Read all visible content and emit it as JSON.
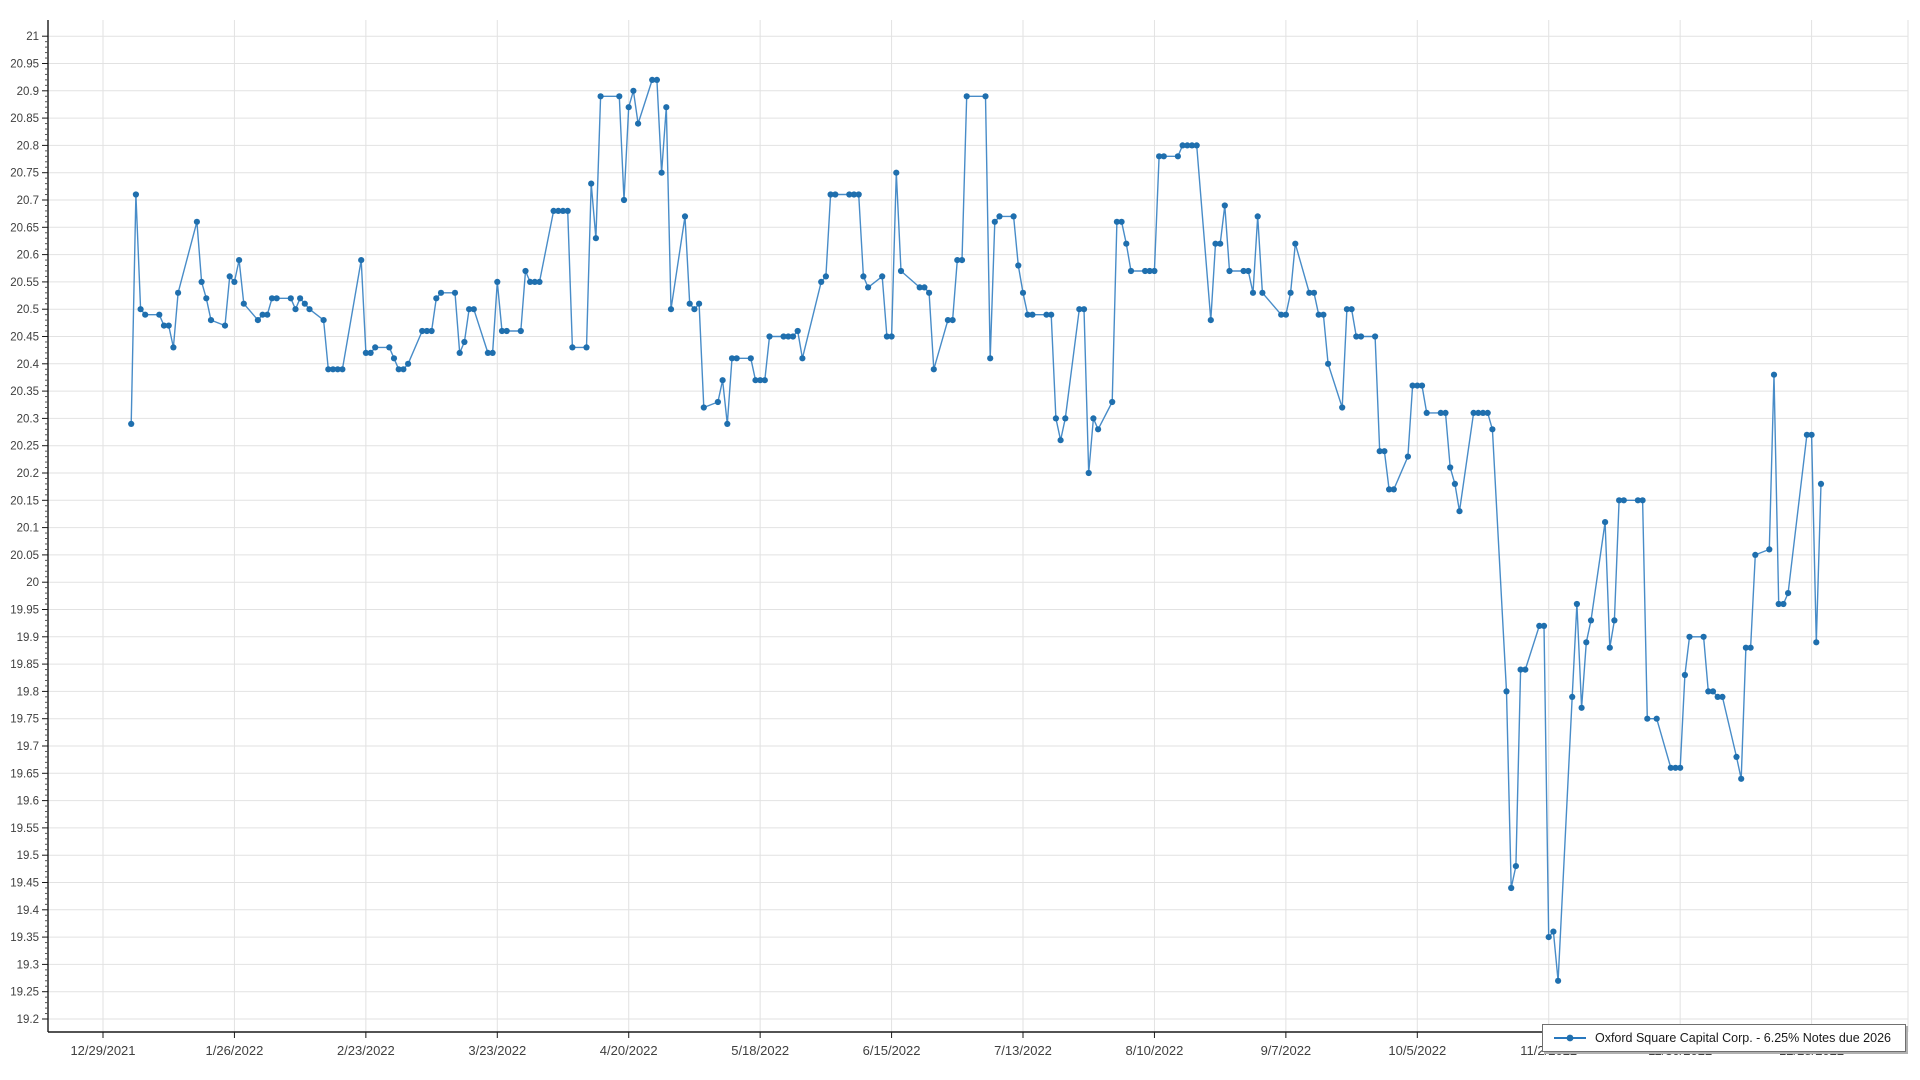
{
  "chart_data": {
    "type": "line",
    "title": "",
    "series_label": "Oxford Square Capital Corp. - 6.25% Notes due 2026",
    "legend_position": "bottom-right",
    "grid": true,
    "line_color": "#2878be",
    "marker_color": "#1f6fae",
    "grid_color": "#e2e2e2",
    "axis_color": "#1a1a1a",
    "label_color": "#404040",
    "y_axis": {
      "min": 19.2,
      "max": 21.0,
      "step": 0.05,
      "minor_step": 0.01
    },
    "x_axis": {
      "tick_labels": [
        "12/29/2021",
        "1/26/2022",
        "2/23/2022",
        "3/23/2022",
        "4/20/2022",
        "5/18/2022",
        "6/15/2022",
        "7/13/2022",
        "8/10/2022",
        "9/7/2022",
        "10/5/2022",
        "11/2/2022",
        "11/30/2022",
        "12/28/2022"
      ]
    },
    "ylim": [
      19.2,
      21.0
    ],
    "points": [
      [
        "1/4/2022",
        20.29
      ],
      [
        "1/5/2022",
        20.71
      ],
      [
        "1/6/2022",
        20.5
      ],
      [
        "1/7/2022",
        20.49
      ],
      [
        "1/10/2022",
        20.49
      ],
      [
        "1/11/2022",
        20.47
      ],
      [
        "1/12/2022",
        20.47
      ],
      [
        "1/13/2022",
        20.43
      ],
      [
        "1/14/2022",
        20.53
      ],
      [
        "1/18/2022",
        20.66
      ],
      [
        "1/19/2022",
        20.55
      ],
      [
        "1/20/2022",
        20.52
      ],
      [
        "1/21/2022",
        20.48
      ],
      [
        "1/24/2022",
        20.47
      ],
      [
        "1/25/2022",
        20.56
      ],
      [
        "1/26/2022",
        20.55
      ],
      [
        "1/27/2022",
        20.59
      ],
      [
        "1/28/2022",
        20.51
      ],
      [
        "1/31/2022",
        20.48
      ],
      [
        "2/1/2022",
        20.49
      ],
      [
        "2/2/2022",
        20.49
      ],
      [
        "2/3/2022",
        20.52
      ],
      [
        "2/4/2022",
        20.52
      ],
      [
        "2/7/2022",
        20.52
      ],
      [
        "2/8/2022",
        20.5
      ],
      [
        "2/9/2022",
        20.52
      ],
      [
        "2/10/2022",
        20.51
      ],
      [
        "2/11/2022",
        20.5
      ],
      [
        "2/14/2022",
        20.48
      ],
      [
        "2/15/2022",
        20.39
      ],
      [
        "2/16/2022",
        20.39
      ],
      [
        "2/17/2022",
        20.39
      ],
      [
        "2/18/2022",
        20.39
      ],
      [
        "2/22/2022",
        20.59
      ],
      [
        "2/23/2022",
        20.42
      ],
      [
        "2/24/2022",
        20.42
      ],
      [
        "2/25/2022",
        20.43
      ],
      [
        "2/28/2022",
        20.43
      ],
      [
        "3/1/2022",
        20.41
      ],
      [
        "3/2/2022",
        20.39
      ],
      [
        "3/3/2022",
        20.39
      ],
      [
        "3/4/2022",
        20.4
      ],
      [
        "3/7/2022",
        20.46
      ],
      [
        "3/8/2022",
        20.46
      ],
      [
        "3/9/2022",
        20.46
      ],
      [
        "3/10/2022",
        20.52
      ],
      [
        "3/11/2022",
        20.53
      ],
      [
        "3/14/2022",
        20.53
      ],
      [
        "3/15/2022",
        20.42
      ],
      [
        "3/16/2022",
        20.44
      ],
      [
        "3/17/2022",
        20.5
      ],
      [
        "3/18/2022",
        20.5
      ],
      [
        "3/21/2022",
        20.42
      ],
      [
        "3/22/2022",
        20.42
      ],
      [
        "3/23/2022",
        20.55
      ],
      [
        "3/24/2022",
        20.46
      ],
      [
        "3/25/2022",
        20.46
      ],
      [
        "3/28/2022",
        20.46
      ],
      [
        "3/29/2022",
        20.57
      ],
      [
        "3/30/2022",
        20.55
      ],
      [
        "3/31/2022",
        20.55
      ],
      [
        "4/1/2022",
        20.55
      ],
      [
        "4/4/2022",
        20.68
      ],
      [
        "4/5/2022",
        20.68
      ],
      [
        "4/6/2022",
        20.68
      ],
      [
        "4/7/2022",
        20.68
      ],
      [
        "4/8/2022",
        20.43
      ],
      [
        "4/11/2022",
        20.43
      ],
      [
        "4/12/2022",
        20.73
      ],
      [
        "4/13/2022",
        20.63
      ],
      [
        "4/14/2022",
        20.89
      ],
      [
        "4/18/2022",
        20.89
      ],
      [
        "4/19/2022",
        20.7
      ],
      [
        "4/20/2022",
        20.87
      ],
      [
        "4/21/2022",
        20.9
      ],
      [
        "4/22/2022",
        20.84
      ],
      [
        "4/25/2022",
        20.92
      ],
      [
        "4/26/2022",
        20.92
      ],
      [
        "4/27/2022",
        20.75
      ],
      [
        "4/28/2022",
        20.87
      ],
      [
        "4/29/2022",
        20.5
      ],
      [
        "5/2/2022",
        20.67
      ],
      [
        "5/3/2022",
        20.51
      ],
      [
        "5/4/2022",
        20.5
      ],
      [
        "5/5/2022",
        20.51
      ],
      [
        "5/6/2022",
        20.32
      ],
      [
        "5/9/2022",
        20.33
      ],
      [
        "5/10/2022",
        20.37
      ],
      [
        "5/11/2022",
        20.29
      ],
      [
        "5/12/2022",
        20.41
      ],
      [
        "5/13/2022",
        20.41
      ],
      [
        "5/16/2022",
        20.41
      ],
      [
        "5/17/2022",
        20.37
      ],
      [
        "5/18/2022",
        20.37
      ],
      [
        "5/19/2022",
        20.37
      ],
      [
        "5/20/2022",
        20.45
      ],
      [
        "5/23/2022",
        20.45
      ],
      [
        "5/24/2022",
        20.45
      ],
      [
        "5/25/2022",
        20.45
      ],
      [
        "5/26/2022",
        20.46
      ],
      [
        "5/27/2022",
        20.41
      ],
      [
        "5/31/2022",
        20.55
      ],
      [
        "6/1/2022",
        20.56
      ],
      [
        "6/2/2022",
        20.71
      ],
      [
        "6/3/2022",
        20.71
      ],
      [
        "6/6/2022",
        20.71
      ],
      [
        "6/7/2022",
        20.71
      ],
      [
        "6/8/2022",
        20.71
      ],
      [
        "6/9/2022",
        20.56
      ],
      [
        "6/10/2022",
        20.54
      ],
      [
        "6/13/2022",
        20.56
      ],
      [
        "6/14/2022",
        20.45
      ],
      [
        "6/15/2022",
        20.45
      ],
      [
        "6/16/2022",
        20.75
      ],
      [
        "6/17/2022",
        20.57
      ],
      [
        "6/21/2022",
        20.54
      ],
      [
        "6/22/2022",
        20.54
      ],
      [
        "6/23/2022",
        20.53
      ],
      [
        "6/24/2022",
        20.39
      ],
      [
        "6/27/2022",
        20.48
      ],
      [
        "6/28/2022",
        20.48
      ],
      [
        "6/29/2022",
        20.59
      ],
      [
        "6/30/2022",
        20.59
      ],
      [
        "7/1/2022",
        20.89
      ],
      [
        "7/5/2022",
        20.89
      ],
      [
        "7/6/2022",
        20.41
      ],
      [
        "7/7/2022",
        20.66
      ],
      [
        "7/8/2022",
        20.67
      ],
      [
        "7/11/2022",
        20.67
      ],
      [
        "7/12/2022",
        20.58
      ],
      [
        "7/13/2022",
        20.53
      ],
      [
        "7/14/2022",
        20.49
      ],
      [
        "7/15/2022",
        20.49
      ],
      [
        "7/18/2022",
        20.49
      ],
      [
        "7/19/2022",
        20.49
      ],
      [
        "7/20/2022",
        20.3
      ],
      [
        "7/21/2022",
        20.26
      ],
      [
        "7/22/2022",
        20.3
      ],
      [
        "7/25/2022",
        20.5
      ],
      [
        "7/26/2022",
        20.5
      ],
      [
        "7/27/2022",
        20.2
      ],
      [
        "7/28/2022",
        20.3
      ],
      [
        "7/29/2022",
        20.28
      ],
      [
        "8/1/2022",
        20.33
      ],
      [
        "8/2/2022",
        20.66
      ],
      [
        "8/3/2022",
        20.66
      ],
      [
        "8/4/2022",
        20.62
      ],
      [
        "8/5/2022",
        20.57
      ],
      [
        "8/8/2022",
        20.57
      ],
      [
        "8/9/2022",
        20.57
      ],
      [
        "8/10/2022",
        20.57
      ],
      [
        "8/11/2022",
        20.78
      ],
      [
        "8/12/2022",
        20.78
      ],
      [
        "8/15/2022",
        20.78
      ],
      [
        "8/16/2022",
        20.8
      ],
      [
        "8/17/2022",
        20.8
      ],
      [
        "8/18/2022",
        20.8
      ],
      [
        "8/19/2022",
        20.8
      ],
      [
        "8/22/2022",
        20.48
      ],
      [
        "8/23/2022",
        20.62
      ],
      [
        "8/24/2022",
        20.62
      ],
      [
        "8/25/2022",
        20.69
      ],
      [
        "8/26/2022",
        20.57
      ],
      [
        "8/29/2022",
        20.57
      ],
      [
        "8/30/2022",
        20.57
      ],
      [
        "8/31/2022",
        20.53
      ],
      [
        "9/1/2022",
        20.67
      ],
      [
        "9/2/2022",
        20.53
      ],
      [
        "9/6/2022",
        20.49
      ],
      [
        "9/7/2022",
        20.49
      ],
      [
        "9/8/2022",
        20.53
      ],
      [
        "9/9/2022",
        20.62
      ],
      [
        "9/12/2022",
        20.53
      ],
      [
        "9/13/2022",
        20.53
      ],
      [
        "9/14/2022",
        20.49
      ],
      [
        "9/15/2022",
        20.49
      ],
      [
        "9/16/2022",
        20.4
      ],
      [
        "9/19/2022",
        20.32
      ],
      [
        "9/20/2022",
        20.5
      ],
      [
        "9/21/2022",
        20.5
      ],
      [
        "9/22/2022",
        20.45
      ],
      [
        "9/23/2022",
        20.45
      ],
      [
        "9/26/2022",
        20.45
      ],
      [
        "9/27/2022",
        20.24
      ],
      [
        "9/28/2022",
        20.24
      ],
      [
        "9/29/2022",
        20.17
      ],
      [
        "9/30/2022",
        20.17
      ],
      [
        "10/3/2022",
        20.23
      ],
      [
        "10/4/2022",
        20.36
      ],
      [
        "10/5/2022",
        20.36
      ],
      [
        "10/6/2022",
        20.36
      ],
      [
        "10/7/2022",
        20.31
      ],
      [
        "10/10/2022",
        20.31
      ],
      [
        "10/11/2022",
        20.31
      ],
      [
        "10/12/2022",
        20.21
      ],
      [
        "10/13/2022",
        20.18
      ],
      [
        "10/14/2022",
        20.13
      ],
      [
        "10/17/2022",
        20.31
      ],
      [
        "10/18/2022",
        20.31
      ],
      [
        "10/19/2022",
        20.31
      ],
      [
        "10/20/2022",
        20.31
      ],
      [
        "10/21/2022",
        20.28
      ],
      [
        "10/24/2022",
        19.8
      ],
      [
        "10/25/2022",
        19.44
      ],
      [
        "10/26/2022",
        19.48
      ],
      [
        "10/27/2022",
        19.84
      ],
      [
        "10/28/2022",
        19.84
      ],
      [
        "10/31/2022",
        19.92
      ],
      [
        "11/1/2022",
        19.92
      ],
      [
        "11/2/2022",
        19.35
      ],
      [
        "11/3/2022",
        19.36
      ],
      [
        "11/4/2022",
        19.27
      ],
      [
        "11/7/2022",
        19.79
      ],
      [
        "11/8/2022",
        19.96
      ],
      [
        "11/9/2022",
        19.77
      ],
      [
        "11/10/2022",
        19.89
      ],
      [
        "11/11/2022",
        19.93
      ],
      [
        "11/14/2022",
        20.11
      ],
      [
        "11/15/2022",
        19.88
      ],
      [
        "11/16/2022",
        19.93
      ],
      [
        "11/17/2022",
        20.15
      ],
      [
        "11/18/2022",
        20.15
      ],
      [
        "11/21/2022",
        20.15
      ],
      [
        "11/22/2022",
        20.15
      ],
      [
        "11/23/2022",
        19.75
      ],
      [
        "11/25/2022",
        19.75
      ],
      [
        "11/28/2022",
        19.66
      ],
      [
        "11/29/2022",
        19.66
      ],
      [
        "11/30/2022",
        19.66
      ],
      [
        "12/1/2022",
        19.83
      ],
      [
        "12/2/2022",
        19.9
      ],
      [
        "12/5/2022",
        19.9
      ],
      [
        "12/6/2022",
        19.8
      ],
      [
        "12/7/2022",
        19.8
      ],
      [
        "12/8/2022",
        19.79
      ],
      [
        "12/9/2022",
        19.79
      ],
      [
        "12/12/2022",
        19.68
      ],
      [
        "12/13/2022",
        19.64
      ],
      [
        "12/14/2022",
        19.88
      ],
      [
        "12/15/2022",
        19.88
      ],
      [
        "12/16/2022",
        20.05
      ],
      [
        "12/19/2022",
        20.06
      ],
      [
        "12/20/2022",
        20.38
      ],
      [
        "12/21/2022",
        19.96
      ],
      [
        "12/22/2022",
        19.96
      ],
      [
        "12/23/2022",
        19.98
      ],
      [
        "12/27/2022",
        20.27
      ],
      [
        "12/28/2022",
        20.27
      ],
      [
        "12/29/2022",
        19.89
      ],
      [
        "12/30/2022",
        20.18
      ]
    ]
  }
}
